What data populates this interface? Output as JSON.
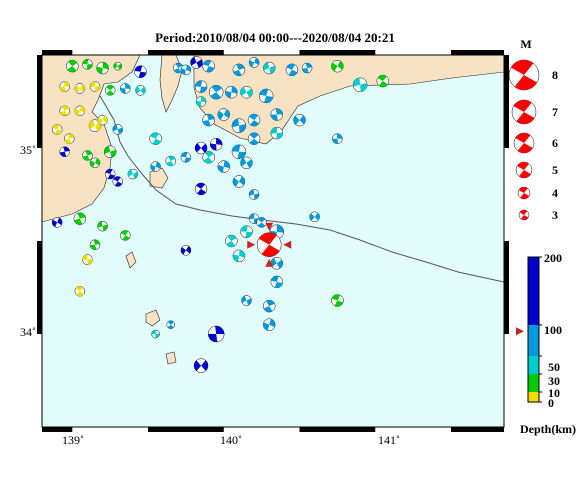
{
  "title": "Period:2010/08/04 00:00---2020/08/04 20:21",
  "map": {
    "lat_labels": [
      "35˚",
      "34˚"
    ],
    "lon_labels": [
      "139˚",
      "140˚",
      "141˚"
    ],
    "lat_values": [
      35,
      34
    ],
    "lon_values": [
      139,
      140,
      141
    ],
    "extent": {
      "lon_min": 138.8,
      "lon_max": 141.85,
      "lat_min": 33.5,
      "lat_max": 35.5
    },
    "land_color": "#f7e3c4",
    "sea_color": "#e2fcfc",
    "frame_color": "#000000",
    "main_event": {
      "lon": 140.3,
      "lat": 34.48,
      "magnitude": 6,
      "color": "#ff0000"
    }
  },
  "legend": {
    "magnitude_title": "M",
    "magnitudes": [
      "8",
      "7",
      "6",
      "5",
      "4",
      "3"
    ],
    "depth_title": "Depth(km)",
    "depth_labels": [
      "200",
      "100",
      "50",
      "30",
      "10",
      "0"
    ],
    "depth_colors": [
      {
        "from": 100,
        "to": 200,
        "color": "#0000cc"
      },
      {
        "from": 50,
        "to": 100,
        "color": "#0099dd"
      },
      {
        "from": 30,
        "to": 50,
        "color": "#00cccc"
      },
      {
        "from": 10,
        "to": 30,
        "color": "#00cc00"
      },
      {
        "from": 0,
        "to": 10,
        "color": "#eedd00"
      }
    ],
    "marker_depth_km": 90
  }
}
